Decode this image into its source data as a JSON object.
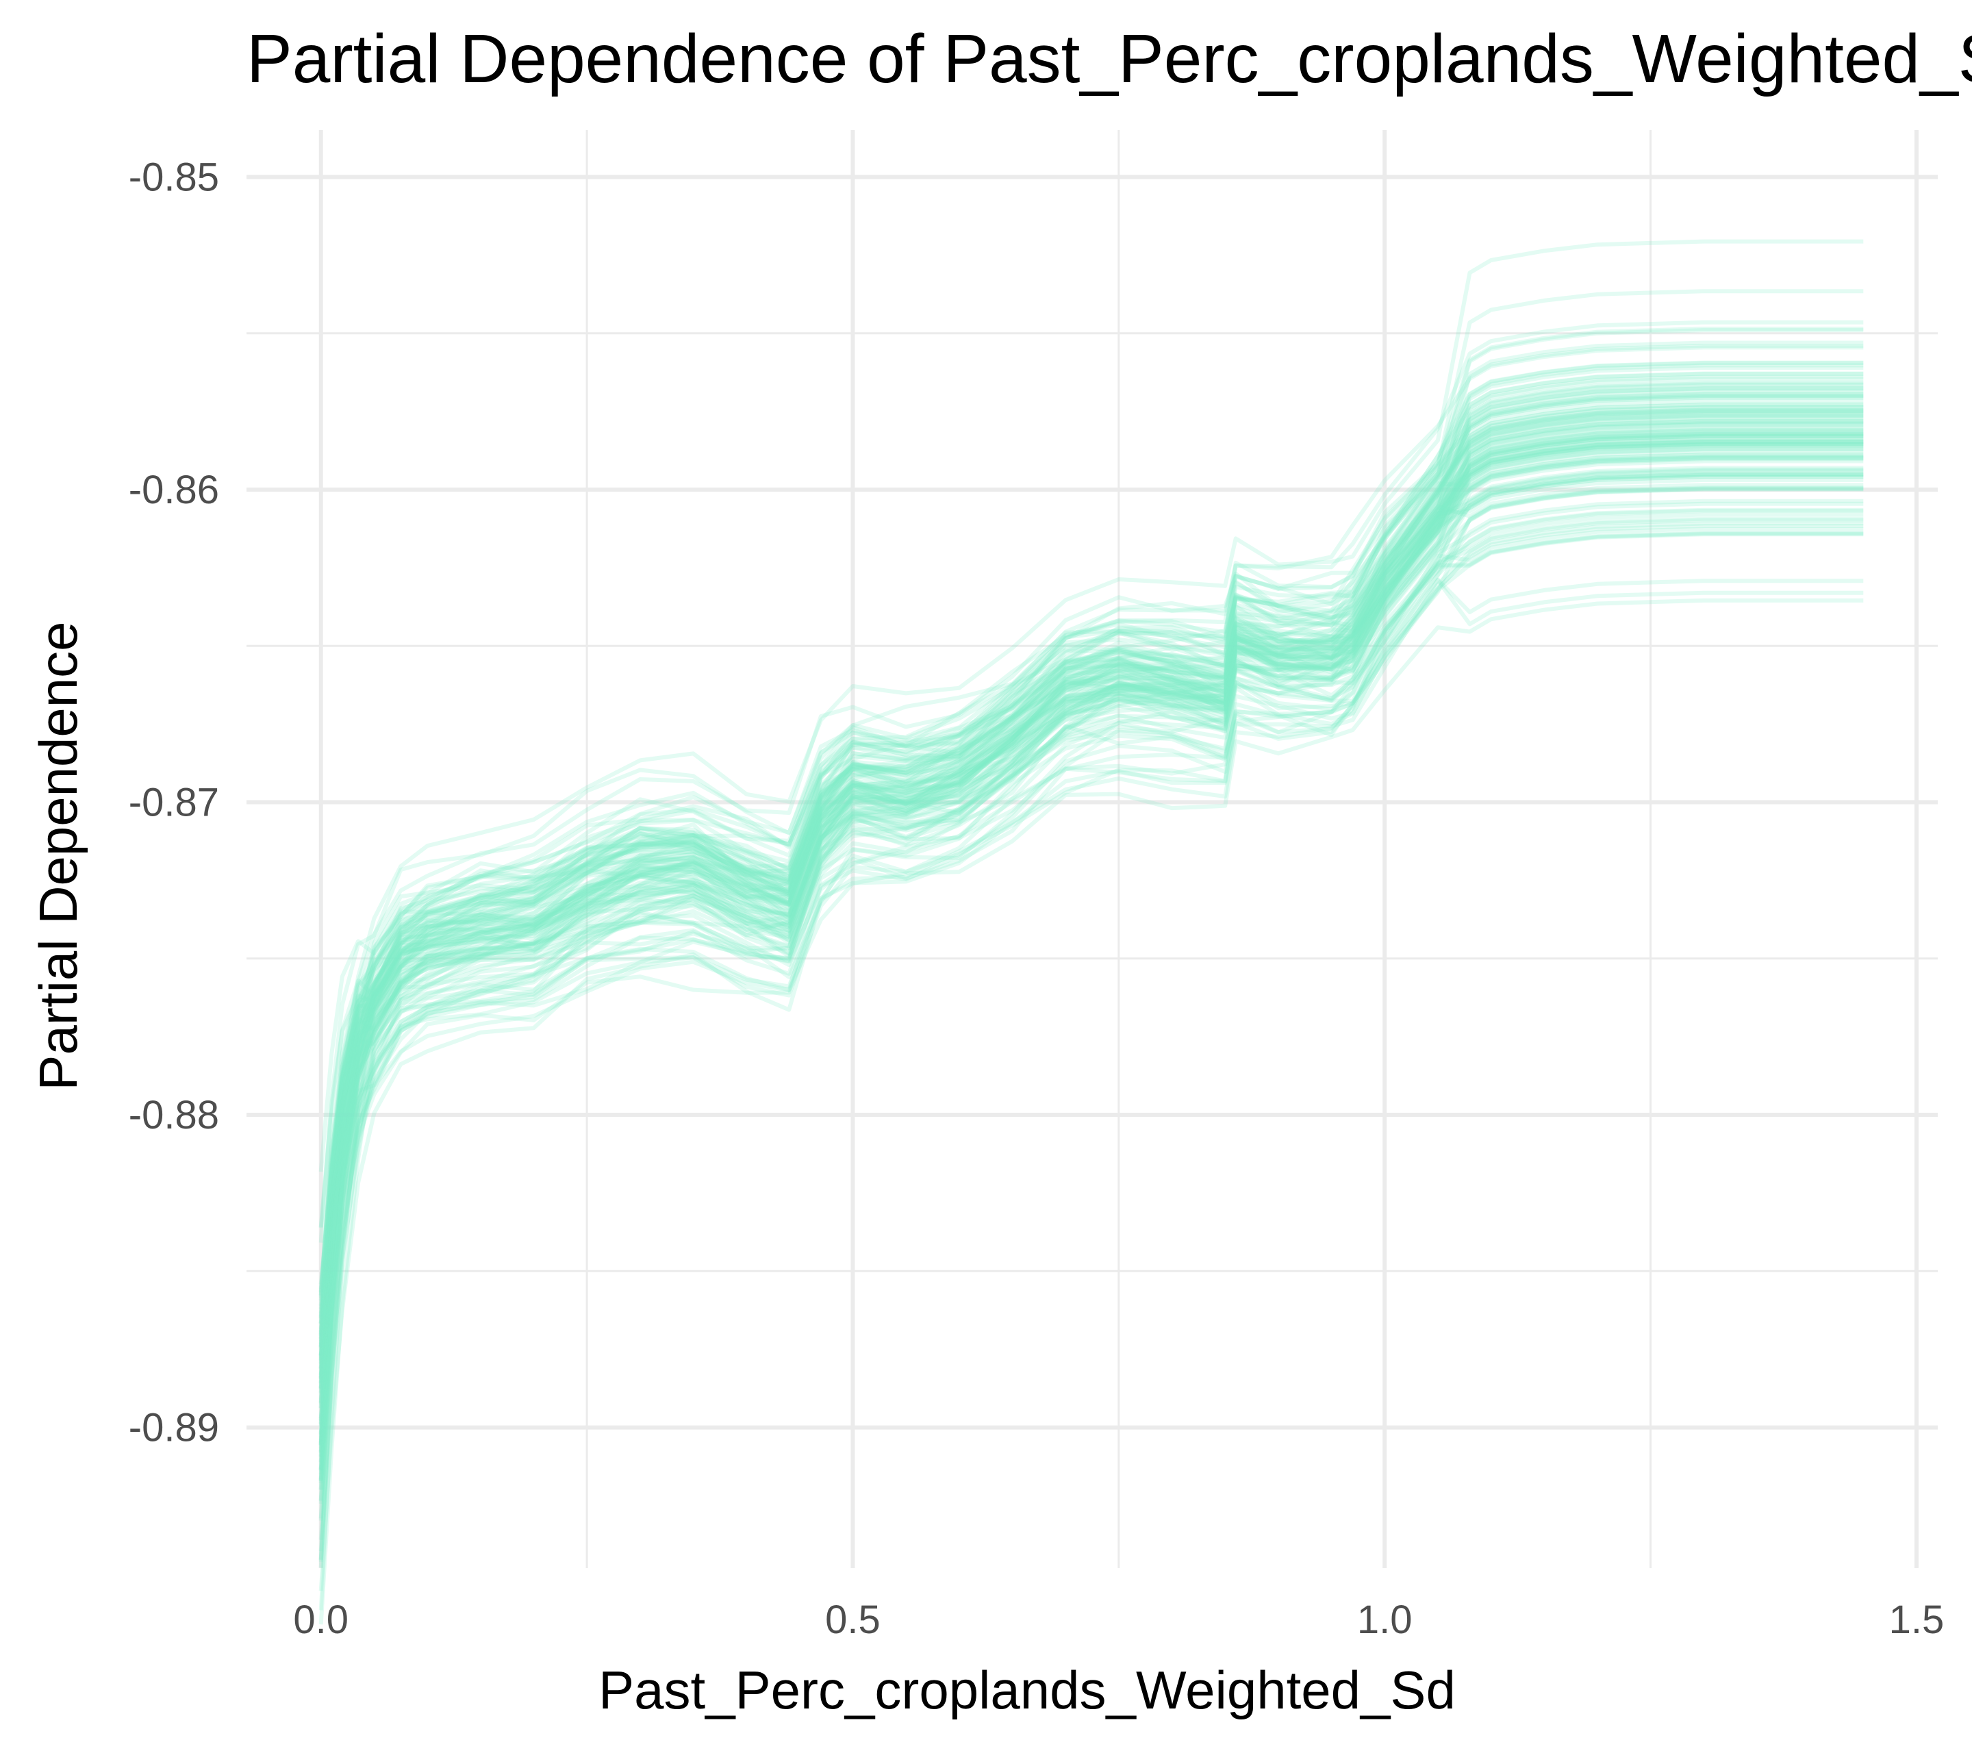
{
  "chart_data": {
    "type": "line",
    "title": "Partial Dependence of Past_Perc_croplands_Weighted_Sd",
    "xlabel": "Past_Perc_croplands_Weighted_Sd",
    "ylabel": "Partial Dependence",
    "xlim": [
      -0.07,
      1.52
    ],
    "ylim": [
      -0.8945,
      -0.8485
    ],
    "x_ticks": [
      0.0,
      0.5,
      1.0,
      1.5
    ],
    "x_tick_labels": [
      "0.0",
      "0.5",
      "1.0",
      "1.5"
    ],
    "y_ticks": [
      -0.85,
      -0.86,
      -0.87,
      -0.88,
      -0.89
    ],
    "y_tick_labels": [
      "-0.85",
      "-0.86",
      "-0.87",
      "-0.88",
      "-0.89"
    ],
    "grid": true,
    "legend": "none",
    "line_color": "#7FEBC8",
    "line_opacity": 0.22,
    "x": [
      0.0,
      0.01,
      0.02,
      0.035,
      0.05,
      0.075,
      0.1,
      0.15,
      0.2,
      0.25,
      0.3,
      0.35,
      0.4,
      0.44,
      0.47,
      0.5,
      0.55,
      0.6,
      0.65,
      0.7,
      0.75,
      0.8,
      0.85,
      0.86,
      0.9,
      0.95,
      0.97,
      1.0,
      1.05,
      1.08,
      1.1,
      1.15,
      1.2,
      1.3,
      1.45
    ],
    "mean_curve": [
      -0.8895,
      -0.8845,
      -0.881,
      -0.878,
      -0.8765,
      -0.875,
      -0.8745,
      -0.874,
      -0.8738,
      -0.8728,
      -0.8722,
      -0.872,
      -0.8728,
      -0.8732,
      -0.8705,
      -0.8695,
      -0.8697,
      -0.8692,
      -0.868,
      -0.8665,
      -0.866,
      -0.8662,
      -0.8665,
      -0.8648,
      -0.8652,
      -0.8652,
      -0.8648,
      -0.863,
      -0.8608,
      -0.8592,
      -0.8588,
      -0.8585,
      -0.8583,
      -0.8582,
      -0.8582
    ],
    "series_count": 120,
    "curve_spread": 0.0022
  }
}
